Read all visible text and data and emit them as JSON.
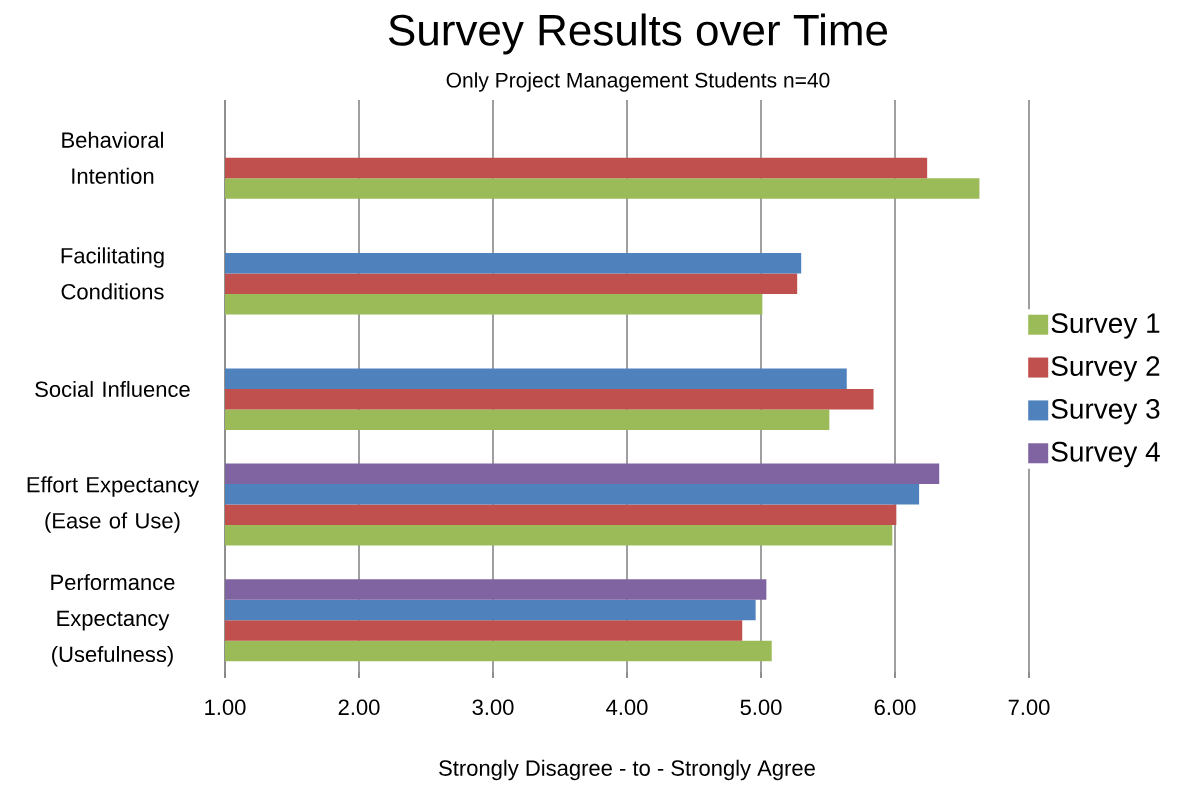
{
  "chart_data": {
    "type": "bar",
    "orientation": "horizontal",
    "title": "Survey Results over Time",
    "subtitle": "Only Project Management Students n=40",
    "xlabel": "Strongly Disagree - to - Strongly Agree",
    "categories": [
      "Behavioral Intention",
      "Facilitating Conditions",
      "Social Influence",
      "Effort Expectancy (Ease of Use)",
      "Performance Expectancy (Usefulness)"
    ],
    "series": [
      {
        "name": "Survey 1",
        "color": "#9bbb59",
        "values": [
          6.63,
          5.01,
          5.51,
          5.98,
          5.08
        ]
      },
      {
        "name": "Survey 2",
        "color": "#c0504d",
        "values": [
          6.24,
          5.27,
          5.84,
          6.01,
          4.86
        ]
      },
      {
        "name": "Survey 3",
        "color": "#4f81bd",
        "values": [
          null,
          5.3,
          5.64,
          6.18,
          4.96
        ]
      },
      {
        "name": "Survey 4",
        "color": "#8064a2",
        "values": [
          null,
          null,
          null,
          6.33,
          5.04
        ]
      }
    ],
    "xlim": [
      1,
      7
    ],
    "xticks": [
      {
        "value": 1,
        "label": "1.00"
      },
      {
        "value": 2,
        "label": "2.00"
      },
      {
        "value": 3,
        "label": "3.00"
      },
      {
        "value": 4,
        "label": "4.00"
      },
      {
        "value": 5,
        "label": "5.00"
      },
      {
        "value": 6,
        "label": "6.00"
      },
      {
        "value": 7,
        "label": "7.00"
      }
    ],
    "grid": "x",
    "legend": "right"
  }
}
